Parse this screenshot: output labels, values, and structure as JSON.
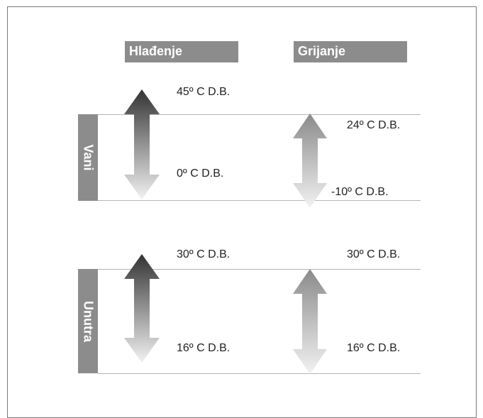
{
  "headers": {
    "cooling": "Hlađenje",
    "heating": "Grijanje"
  },
  "sections": {
    "outdoor": "Vani",
    "indoor": "Unutra"
  },
  "temperatures": {
    "outdoor_cooling_max": "45º C D.B.",
    "outdoor_cooling_min": "0º C D.B.",
    "outdoor_heating_max": "24º C D.B.",
    "outdoor_heating_min": "-10º C D.B.",
    "indoor_cooling_max": "30º C D.B.",
    "indoor_cooling_min": "16º C D.B.",
    "indoor_heating_max": "30º C D.B.",
    "indoor_heating_min": "16º C D.B."
  },
  "colors": {
    "cooling_arrow_top": "#3a3a3a",
    "heating_arrow_top": "#8e8e8e",
    "label_bg": "#8c8c8c"
  }
}
